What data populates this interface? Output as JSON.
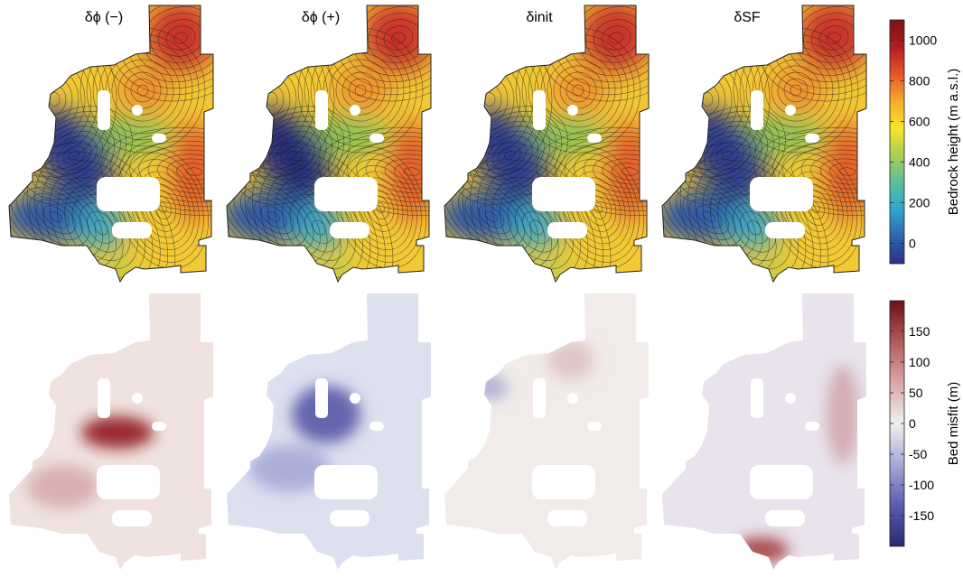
{
  "panels": {
    "titles": [
      "δϕ (−)",
      "δϕ (+)",
      "δinit",
      "δSF"
    ]
  },
  "colorbars": [
    {
      "label": "Bedrock height (m a.s.l.)",
      "ticks": [
        "1000",
        "800",
        "600",
        "400",
        "200",
        "0"
      ],
      "tick_values": [
        1000,
        800,
        600,
        400,
        200,
        0
      ],
      "range": [
        -100,
        1100
      ],
      "colormap": [
        "#2b2f87",
        "#2f63b0",
        "#30a6d0",
        "#59bf9f",
        "#a7cf50",
        "#f6e726",
        "#f7ab2c",
        "#e8552a",
        "#b01d20",
        "#7a1414"
      ]
    },
    {
      "label": "Bed misfit (m)",
      "ticks": [
        "150",
        "100",
        "50",
        "0",
        "-50",
        "-100",
        "-150"
      ],
      "tick_values": [
        150,
        100,
        50,
        0,
        -50,
        -100,
        -150
      ],
      "range": [
        -200,
        200
      ],
      "colormap": [
        "#262a70",
        "#5a5db0",
        "#a6a8d6",
        "#f0f0f0",
        "#d9a6a6",
        "#b25a5a",
        "#6e1014"
      ]
    }
  ],
  "top_row_maps": [
    {
      "trough": "#2d3d91",
      "highs": [
        "#c9332a",
        "#e35a2a",
        "#ee8c2e"
      ]
    },
    {
      "trough": "#282e7e",
      "highs": [
        "#c9332a",
        "#e35a2a",
        "#ee8c2e"
      ]
    },
    {
      "trough": "#2d3d91",
      "highs": [
        "#c9332a",
        "#e35a2a",
        "#ee8c2e"
      ]
    },
    {
      "trough": "#2d3d91",
      "highs": [
        "#c9332a",
        "#e35a2a",
        "#ee8c2e"
      ]
    }
  ],
  "bottom_row_maps": [
    {
      "base": "#efe2df",
      "blobs": [
        {
          "c": "#8f1b1f",
          "o": 0.9
        },
        {
          "c": "#c98f8f",
          "o": 0.6
        }
      ]
    },
    {
      "base": "#dde0ef",
      "blobs": [
        {
          "c": "#3a3d9a",
          "o": 0.75
        },
        {
          "c": "#8a8ec9",
          "o": 0.6
        }
      ]
    },
    {
      "base": "#f1ecea",
      "blobs": [
        {
          "c": "#c79999",
          "o": 0.45
        },
        {
          "c": "#7478bb",
          "o": 0.5
        }
      ]
    },
    {
      "base": "#e8e3ec",
      "blobs": [
        {
          "c": "#9b2428",
          "o": 0.8
        },
        {
          "c": "#c58a8e",
          "o": 0.6
        }
      ]
    }
  ]
}
